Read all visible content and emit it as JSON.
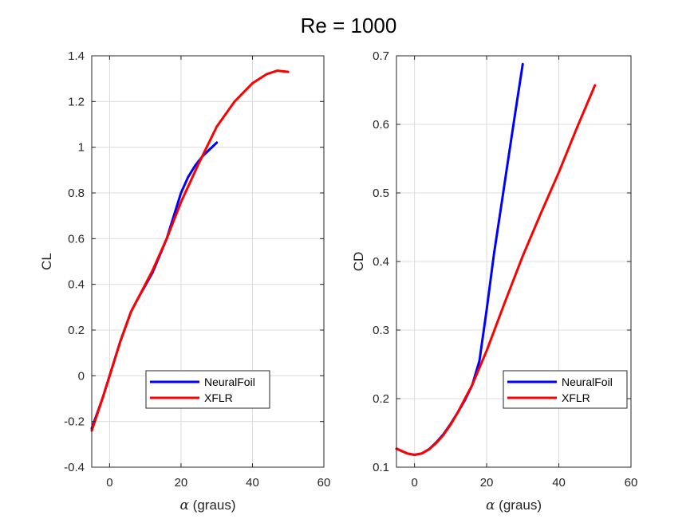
{
  "figure": {
    "title": "Re = 1000"
  },
  "chart_data": [
    {
      "type": "line",
      "title": "",
      "xlabel_symbol": "α",
      "xlabel_text": " (graus)",
      "ylabel": "CL",
      "xlim": [
        -5,
        60
      ],
      "ylim": [
        -0.4,
        1.4
      ],
      "xticks": [
        0,
        20,
        40,
        60
      ],
      "yticks": [
        -0.4,
        -0.2,
        0,
        0.2,
        0.4,
        0.6,
        0.8,
        1,
        1.2,
        1.4
      ],
      "grid": true,
      "legend": "bottom-right",
      "series": [
        {
          "name": "NeuralFoil",
          "color": "#0000ff",
          "x": [
            -5,
            -2,
            0,
            3,
            6,
            8,
            12,
            16,
            20,
            22,
            24,
            26,
            28,
            30
          ],
          "y": [
            -0.23,
            -0.1,
            0,
            0.15,
            0.28,
            0.34,
            0.45,
            0.6,
            0.8,
            0.87,
            0.92,
            0.96,
            0.99,
            1.02
          ]
        },
        {
          "name": "XFLR",
          "color": "#ff0000",
          "x": [
            -5,
            -2,
            0,
            3,
            6,
            8,
            12,
            16,
            20,
            25,
            30,
            35,
            40,
            44,
            47,
            50
          ],
          "y": [
            -0.24,
            -0.1,
            0,
            0.15,
            0.28,
            0.34,
            0.46,
            0.6,
            0.76,
            0.93,
            1.09,
            1.2,
            1.28,
            1.32,
            1.335,
            1.33
          ]
        }
      ]
    },
    {
      "type": "line",
      "title": "",
      "xlabel_symbol": "α",
      "xlabel_text": " (graus)",
      "ylabel": "CD",
      "xlim": [
        -5,
        60
      ],
      "ylim": [
        0.1,
        0.7
      ],
      "xticks": [
        0,
        20,
        40,
        60
      ],
      "yticks": [
        0.1,
        0.2,
        0.3,
        0.4,
        0.5,
        0.6,
        0.7
      ],
      "grid": true,
      "legend": "bottom-right",
      "series": [
        {
          "name": "NeuralFoil",
          "color": "#0000ff",
          "x": [
            -5,
            -2,
            0,
            2,
            4,
            6,
            8,
            10,
            12,
            14,
            16,
            18,
            20,
            22,
            24,
            26,
            28,
            30
          ],
          "y": [
            0.127,
            0.12,
            0.118,
            0.12,
            0.126,
            0.136,
            0.148,
            0.163,
            0.18,
            0.198,
            0.22,
            0.255,
            0.33,
            0.41,
            0.48,
            0.55,
            0.62,
            0.688
          ]
        },
        {
          "name": "XFLR",
          "color": "#ff0000",
          "x": [
            -5,
            -2,
            0,
            2,
            4,
            6,
            8,
            10,
            12,
            14,
            16,
            18,
            20,
            25,
            30,
            35,
            40,
            45,
            50
          ],
          "y": [
            0.127,
            0.12,
            0.118,
            0.12,
            0.126,
            0.135,
            0.147,
            0.162,
            0.18,
            0.2,
            0.22,
            0.245,
            0.27,
            0.34,
            0.408,
            0.47,
            0.53,
            0.595,
            0.657
          ]
        }
      ]
    }
  ]
}
